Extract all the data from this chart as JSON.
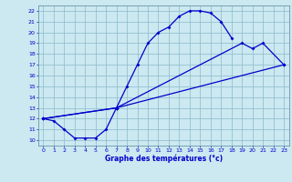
{
  "title": "Graphe des températures (°c)",
  "bg_color": "#cce8f0",
  "plot_bg_color": "#cce8f0",
  "line_color": "#0000cc",
  "grid_color": "#88bbcc",
  "xlim": [
    -0.5,
    23.5
  ],
  "ylim": [
    9.5,
    22.5
  ],
  "xticks": [
    0,
    1,
    2,
    3,
    4,
    5,
    6,
    7,
    8,
    9,
    10,
    11,
    12,
    13,
    14,
    15,
    16,
    17,
    18,
    19,
    20,
    21,
    22,
    23
  ],
  "yticks": [
    10,
    11,
    12,
    13,
    14,
    15,
    16,
    17,
    18,
    19,
    20,
    21,
    22
  ],
  "curve1_x": [
    0,
    1,
    2,
    3,
    4,
    5,
    6,
    7,
    8,
    9,
    10,
    11,
    12,
    13,
    14,
    15,
    16,
    17,
    18
  ],
  "curve1_y": [
    12,
    11.8,
    11,
    10.2,
    10.2,
    10.2,
    11,
    13,
    15,
    17,
    19,
    20,
    20.5,
    21.5,
    22,
    22,
    21.8,
    21,
    19.5
  ],
  "curve2_x": [
    0,
    7,
    19,
    20,
    21,
    23
  ],
  "curve2_y": [
    12,
    13,
    19,
    18.5,
    19,
    17
  ],
  "curve3_x": [
    0,
    7,
    23
  ],
  "curve3_y": [
    12,
    13,
    17
  ]
}
